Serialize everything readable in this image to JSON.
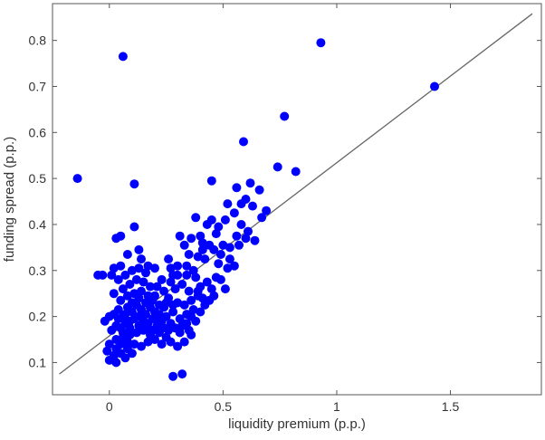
{
  "chart_data": {
    "type": "scatter",
    "title": "",
    "xlabel": "liquidity premium (p.p.)",
    "ylabel": "funding spread (p.p.)",
    "xlim": [
      -0.25,
      1.9
    ],
    "ylim": [
      0.03,
      0.88
    ],
    "xticks": [
      0,
      0.5,
      1,
      1.5
    ],
    "xtick_labels": [
      "0",
      "0.5",
      "1",
      "1.5"
    ],
    "yticks": [
      0.1,
      0.2,
      0.3,
      0.4,
      0.5,
      0.6,
      0.7,
      0.8
    ],
    "ytick_labels": [
      "0.1",
      "0.2",
      "0.3",
      "0.4",
      "0.5",
      "0.6",
      "0.7",
      "0.8"
    ],
    "grid": false,
    "legend": "none",
    "colors": {
      "points": "#0000ff",
      "fit_line": "#666666",
      "axes": "#555555"
    },
    "fit_line": {
      "x": [
        -0.22,
        1.86
      ],
      "y": [
        0.075,
        0.858
      ]
    },
    "series": [
      {
        "points": [
          [
            -0.14,
            0.5
          ],
          [
            0.06,
            0.765
          ],
          [
            0.93,
            0.795
          ],
          [
            1.43,
            0.7
          ],
          [
            0.11,
            0.488
          ],
          [
            0.77,
            0.635
          ],
          [
            0.59,
            0.58
          ],
          [
            0.82,
            0.515
          ],
          [
            0.74,
            0.525
          ],
          [
            0.69,
            0.43
          ],
          [
            0.66,
            0.475
          ],
          [
            0.62,
            0.49
          ],
          [
            0.45,
            0.495
          ],
          [
            0.56,
            0.48
          ],
          [
            0.6,
            0.455
          ],
          [
            0.67,
            0.415
          ],
          [
            0.52,
            0.445
          ],
          [
            0.55,
            0.425
          ],
          [
            0.38,
            0.415
          ],
          [
            0.4,
            0.375
          ],
          [
            0.43,
            0.4
          ],
          [
            0.47,
            0.38
          ],
          [
            0.51,
            0.41
          ],
          [
            0.58,
            0.4
          ],
          [
            0.61,
            0.385
          ],
          [
            0.64,
            0.365
          ],
          [
            0.57,
            0.355
          ],
          [
            0.5,
            0.355
          ],
          [
            0.46,
            0.345
          ],
          [
            0.44,
            0.355
          ],
          [
            0.41,
            0.345
          ],
          [
            0.39,
            0.33
          ],
          [
            0.42,
            0.325
          ],
          [
            0.48,
            0.315
          ],
          [
            0.53,
            0.325
          ],
          [
            0.55,
            0.31
          ],
          [
            0.36,
            0.37
          ],
          [
            0.33,
            0.355
          ],
          [
            0.31,
            0.375
          ],
          [
            0.35,
            0.335
          ],
          [
            0.37,
            0.3
          ],
          [
            0.34,
            0.29
          ],
          [
            0.3,
            0.31
          ],
          [
            0.26,
            0.325
          ],
          [
            0.27,
            0.305
          ],
          [
            0.43,
            0.275
          ],
          [
            0.45,
            0.26
          ],
          [
            0.49,
            0.28
          ],
          [
            0.51,
            0.26
          ],
          [
            0.46,
            0.245
          ],
          [
            0.38,
            0.285
          ],
          [
            0.4,
            0.265
          ],
          [
            0.35,
            0.255
          ],
          [
            0.32,
            0.27
          ],
          [
            0.29,
            0.26
          ],
          [
            0.36,
            0.235
          ],
          [
            0.39,
            0.245
          ],
          [
            0.42,
            0.225
          ],
          [
            0.33,
            0.225
          ],
          [
            0.3,
            0.23
          ],
          [
            0.28,
            0.21
          ],
          [
            0.31,
            0.195
          ],
          [
            0.34,
            0.205
          ],
          [
            0.37,
            0.215
          ],
          [
            0.26,
            0.24
          ],
          [
            0.24,
            0.22
          ],
          [
            0.22,
            0.205
          ],
          [
            0.2,
            0.21
          ],
          [
            0.18,
            0.22
          ],
          [
            0.16,
            0.205
          ],
          [
            0.14,
            0.215
          ],
          [
            0.12,
            0.225
          ],
          [
            0.1,
            0.21
          ],
          [
            0.08,
            0.22
          ],
          [
            0.06,
            0.2
          ],
          [
            0.04,
            0.215
          ],
          [
            0.02,
            0.205
          ],
          [
            0.0,
            0.2
          ],
          [
            -0.02,
            0.19
          ],
          [
            0.01,
            0.17
          ],
          [
            0.03,
            0.18
          ],
          [
            0.05,
            0.175
          ],
          [
            0.07,
            0.185
          ],
          [
            0.09,
            0.19
          ],
          [
            0.11,
            0.195
          ],
          [
            0.13,
            0.2
          ],
          [
            0.15,
            0.19
          ],
          [
            0.17,
            0.185
          ],
          [
            0.19,
            0.195
          ],
          [
            0.21,
            0.18
          ],
          [
            0.23,
            0.19
          ],
          [
            0.25,
            0.2
          ],
          [
            0.27,
            0.185
          ],
          [
            0.29,
            0.175
          ],
          [
            0.32,
            0.18
          ],
          [
            0.35,
            0.17
          ],
          [
            0.22,
            0.165
          ],
          [
            0.18,
            0.16
          ],
          [
            0.15,
            0.17
          ],
          [
            0.12,
            0.165
          ],
          [
            0.09,
            0.16
          ],
          [
            0.06,
            0.155
          ],
          [
            0.03,
            0.15
          ],
          [
            0.0,
            0.14
          ],
          [
            -0.01,
            0.125
          ],
          [
            0.02,
            0.115
          ],
          [
            0.05,
            0.12
          ],
          [
            0.08,
            0.13
          ],
          [
            0.11,
            0.14
          ],
          [
            0.14,
            0.135
          ],
          [
            0.17,
            0.145
          ],
          [
            0.2,
            0.15
          ],
          [
            0.23,
            0.14
          ],
          [
            0.25,
            0.155
          ],
          [
            0.27,
            0.145
          ],
          [
            0.3,
            0.135
          ],
          [
            0.33,
            0.145
          ],
          [
            0.36,
            0.16
          ],
          [
            0.0,
            0.105
          ],
          [
            0.03,
            0.1
          ],
          [
            0.07,
            0.11
          ],
          [
            0.1,
            0.12
          ],
          [
            0.28,
            0.07
          ],
          [
            0.32,
            0.075
          ],
          [
            0.03,
            0.13
          ],
          [
            0.05,
            0.14
          ],
          [
            0.08,
            0.145
          ],
          [
            0.06,
            0.165
          ],
          [
            0.09,
            0.175
          ],
          [
            0.13,
            0.18
          ],
          [
            0.16,
            0.175
          ],
          [
            0.19,
            0.17
          ],
          [
            0.24,
            0.175
          ],
          [
            0.04,
            0.195
          ],
          [
            0.07,
            0.205
          ],
          [
            0.1,
            0.23
          ],
          [
            0.13,
            0.24
          ],
          [
            0.16,
            0.23
          ],
          [
            0.19,
            0.235
          ],
          [
            0.22,
            0.225
          ],
          [
            0.25,
            0.23
          ],
          [
            0.05,
            0.235
          ],
          [
            0.08,
            0.245
          ],
          [
            0.11,
            0.25
          ],
          [
            0.14,
            0.255
          ],
          [
            0.17,
            0.245
          ],
          [
            0.02,
            0.25
          ],
          [
            0.06,
            0.26
          ],
          [
            0.09,
            0.27
          ],
          [
            0.12,
            0.28
          ],
          [
            0.15,
            0.275
          ],
          [
            0.18,
            0.265
          ],
          [
            0.04,
            0.28
          ],
          [
            0.07,
            0.29
          ],
          [
            0.1,
            0.3
          ],
          [
            0.13,
            0.305
          ],
          [
            0.16,
            0.295
          ],
          [
            0.01,
            0.29
          ],
          [
            -0.03,
            0.29
          ],
          [
            -0.05,
            0.29
          ],
          [
            0.03,
            0.37
          ],
          [
            0.05,
            0.375
          ],
          [
            0.11,
            0.395
          ],
          [
            0.13,
            0.345
          ],
          [
            0.14,
            0.325
          ],
          [
            0.08,
            0.335
          ],
          [
            0.05,
            0.31
          ],
          [
            0.02,
            0.305
          ],
          [
            0.17,
            0.31
          ],
          [
            0.2,
            0.305
          ],
          [
            0.23,
            0.28
          ],
          [
            0.21,
            0.265
          ],
          [
            0.24,
            0.255
          ],
          [
            0.27,
            0.275
          ],
          [
            0.2,
            0.245
          ],
          [
            0.22,
            0.19
          ],
          [
            0.28,
            0.225
          ],
          [
            0.26,
            0.17
          ],
          [
            0.31,
            0.165
          ],
          [
            0.34,
            0.185
          ],
          [
            0.38,
            0.19
          ],
          [
            0.36,
            0.2
          ],
          [
            0.4,
            0.21
          ],
          [
            0.41,
            0.24
          ],
          [
            0.44,
            0.235
          ],
          [
            0.39,
            0.255
          ],
          [
            0.47,
            0.285
          ],
          [
            0.52,
            0.305
          ],
          [
            0.49,
            0.335
          ],
          [
            0.53,
            0.35
          ],
          [
            0.56,
            0.375
          ],
          [
            0.6,
            0.37
          ],
          [
            0.63,
            0.44
          ],
          [
            0.58,
            0.445
          ],
          [
            0.48,
            0.395
          ],
          [
            0.45,
            0.41
          ],
          [
            0.41,
            0.36
          ],
          [
            0.34,
            0.31
          ],
          [
            0.3,
            0.29
          ],
          [
            0.28,
            0.29
          ]
        ]
      }
    ]
  }
}
